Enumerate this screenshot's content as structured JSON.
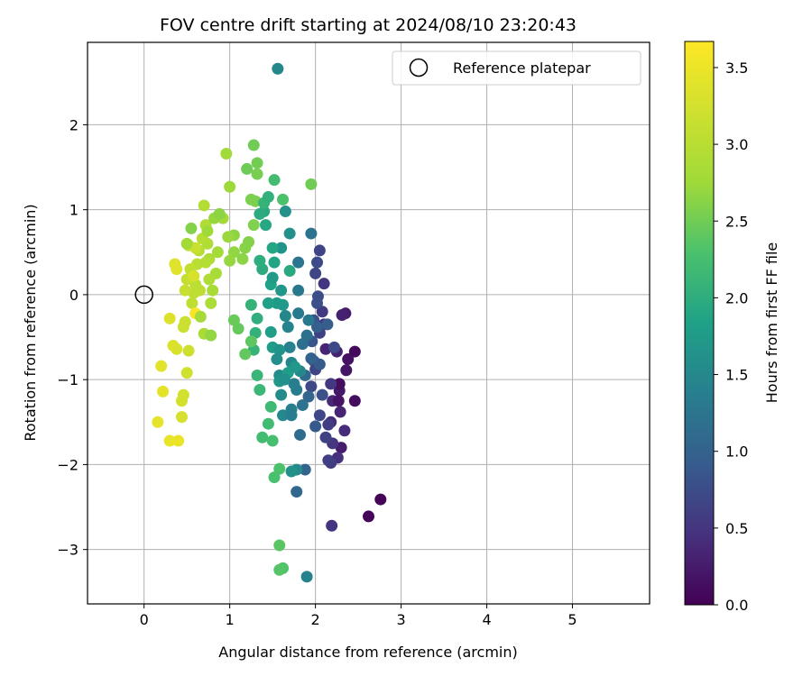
{
  "chart_data": {
    "type": "scatter",
    "title": "FOV centre drift starting at 2024/08/10 23:20:43",
    "xlabel": "Angular distance from reference (arcmin)",
    "ylabel": "Rotation from reference (arcmin)",
    "xlim": [
      -0.66,
      5.9
    ],
    "ylim": [
      -3.64,
      2.97
    ],
    "xticks": [
      0,
      1,
      2,
      3,
      4,
      5
    ],
    "yticks": [
      -3,
      -2,
      -1,
      0,
      1,
      2
    ],
    "xtick_labels": [
      "0",
      "1",
      "2",
      "3",
      "4",
      "5"
    ],
    "ytick_labels": [
      "−3",
      "−2",
      "−1",
      "0",
      "1",
      "2"
    ],
    "grid": true,
    "legend": {
      "position": "top-right",
      "label": "Reference platepar",
      "marker": "open-circle"
    },
    "reference_point": {
      "x": 0,
      "y": 0
    },
    "colorbar": {
      "label": "Hours from first FF file",
      "min": 0.0,
      "max": 3.67,
      "ticks": [
        0.0,
        0.5,
        1.0,
        1.5,
        2.0,
        2.5,
        3.0,
        3.5
      ],
      "tick_labels": [
        "0.0",
        "0.5",
        "1.0",
        "1.5",
        "2.0",
        "2.5",
        "3.0",
        "3.5"
      ],
      "colormap": "viridis"
    },
    "series": [
      {
        "points": [
          [
            2.76,
            -2.41,
            0.02
          ],
          [
            2.62,
            -2.61,
            0.05
          ],
          [
            2.46,
            -0.67,
            0.08
          ],
          [
            2.46,
            -1.25,
            0.1
          ],
          [
            2.38,
            -0.76,
            0.15
          ],
          [
            2.36,
            -0.89,
            0.2
          ],
          [
            2.35,
            -0.22,
            0.25
          ],
          [
            2.31,
            -0.24,
            0.3
          ],
          [
            2.28,
            -1.13,
            0.22
          ],
          [
            2.29,
            -1.38,
            0.35
          ],
          [
            2.34,
            -1.6,
            0.4
          ],
          [
            2.3,
            -1.8,
            0.28
          ],
          [
            2.26,
            -1.92,
            0.45
          ],
          [
            2.2,
            -1.75,
            0.5
          ],
          [
            2.18,
            -1.98,
            0.55
          ],
          [
            2.15,
            -1.95,
            0.6
          ],
          [
            2.19,
            -2.72,
            0.48
          ],
          [
            2.25,
            -0.67,
            0.32
          ],
          [
            2.18,
            -1.5,
            0.42
          ],
          [
            2.15,
            -1.53,
            0.58
          ],
          [
            2.2,
            -1.25,
            0.38
          ],
          [
            2.28,
            -1.05,
            0.12
          ],
          [
            2.27,
            -1.25,
            0.18
          ],
          [
            2.18,
            -1.05,
            0.52
          ],
          [
            2.12,
            -0.64,
            0.35
          ],
          [
            2.1,
            -0.35,
            0.45
          ],
          [
            2.08,
            -0.2,
            0.55
          ],
          [
            2.05,
            -0.45,
            0.62
          ],
          [
            2.1,
            0.13,
            0.48
          ],
          [
            2.05,
            0.52,
            0.65
          ],
          [
            2.02,
            0.38,
            0.72
          ],
          [
            2.0,
            0.25,
            0.68
          ],
          [
            2.03,
            -0.02,
            0.75
          ],
          [
            2.02,
            -0.1,
            0.78
          ],
          [
            1.98,
            -0.3,
            0.82
          ],
          [
            1.96,
            -0.55,
            0.85
          ],
          [
            1.98,
            -0.78,
            0.88
          ],
          [
            2.0,
            -0.88,
            0.66
          ],
          [
            1.95,
            -1.08,
            0.72
          ],
          [
            2.05,
            -0.82,
            0.92
          ],
          [
            2.02,
            -0.38,
            0.96
          ],
          [
            2.08,
            -1.18,
            0.8
          ],
          [
            2.05,
            -1.42,
            0.7
          ],
          [
            2.12,
            -1.68,
            0.62
          ],
          [
            2.0,
            -1.55,
            0.9
          ],
          [
            1.95,
            -0.75,
            1.0
          ],
          [
            1.92,
            -1.2,
            1.05
          ],
          [
            1.88,
            -0.95,
            1.1
          ],
          [
            1.85,
            -0.58,
            1.15
          ],
          [
            1.88,
            -2.06,
            1.02
          ],
          [
            1.78,
            -2.32,
            1.08
          ],
          [
            1.82,
            -1.65,
            1.12
          ],
          [
            1.9,
            -0.48,
            1.18
          ],
          [
            1.95,
            0.72,
            1.22
          ],
          [
            1.8,
            0.38,
            1.25
          ],
          [
            1.8,
            0.05,
            1.28
          ],
          [
            1.8,
            -0.22,
            1.3
          ],
          [
            1.78,
            -1.12,
            1.32
          ],
          [
            1.75,
            -1.05,
            1.35
          ],
          [
            1.72,
            -1.35,
            1.38
          ],
          [
            1.7,
            -0.62,
            1.4
          ],
          [
            1.68,
            -0.38,
            1.42
          ],
          [
            1.72,
            -0.8,
            1.45
          ],
          [
            1.65,
            -0.25,
            1.48
          ],
          [
            1.62,
            -1.42,
            1.5
          ],
          [
            1.6,
            -1.18,
            1.52
          ],
          [
            1.58,
            -0.95,
            1.55
          ],
          [
            1.55,
            -0.76,
            1.58
          ],
          [
            1.7,
            0.72,
            1.6
          ],
          [
            1.65,
            0.98,
            1.62
          ],
          [
            1.6,
            0.55,
            1.65
          ],
          [
            1.58,
            -1.02,
            1.68
          ],
          [
            1.6,
            0.05,
            1.7
          ],
          [
            1.62,
            -0.12,
            1.72
          ],
          [
            1.55,
            -0.1,
            1.75
          ],
          [
            1.5,
            -0.62,
            1.78
          ],
          [
            1.48,
            -0.44,
            1.8
          ],
          [
            1.45,
            -0.1,
            1.82
          ],
          [
            1.48,
            0.12,
            1.85
          ],
          [
            1.52,
            0.38,
            1.88
          ],
          [
            1.5,
            0.55,
            1.9
          ],
          [
            1.42,
            0.82,
            1.92
          ],
          [
            1.4,
            0.98,
            1.95
          ],
          [
            1.38,
            0.3,
            1.98
          ],
          [
            1.35,
            0.4,
            2.0
          ],
          [
            1.32,
            -0.28,
            2.02
          ],
          [
            1.3,
            -0.45,
            2.05
          ],
          [
            1.25,
            -0.12,
            2.08
          ],
          [
            1.28,
            -0.65,
            2.1
          ],
          [
            1.32,
            -0.95,
            2.12
          ],
          [
            1.35,
            -1.12,
            2.15
          ],
          [
            1.48,
            -1.32,
            2.18
          ],
          [
            1.45,
            -1.52,
            2.2
          ],
          [
            1.38,
            -1.68,
            2.22
          ],
          [
            1.5,
            -1.72,
            2.25
          ],
          [
            1.52,
            -2.15,
            2.28
          ],
          [
            1.58,
            -2.05,
            2.3
          ],
          [
            1.62,
            -3.22,
            2.32
          ],
          [
            1.58,
            -3.24,
            2.35
          ],
          [
            1.9,
            -3.32,
            1.42
          ],
          [
            1.58,
            -2.95,
            2.38
          ],
          [
            1.25,
            -0.55,
            2.4
          ],
          [
            1.18,
            -0.7,
            2.42
          ],
          [
            1.1,
            -0.4,
            2.44
          ],
          [
            1.05,
            -0.3,
            2.46
          ],
          [
            1.2,
            1.48,
            2.48
          ],
          [
            1.28,
            1.76,
            2.5
          ],
          [
            1.32,
            1.55,
            2.52
          ],
          [
            1.32,
            1.42,
            2.54
          ],
          [
            1.3,
            1.1,
            2.55
          ],
          [
            1.25,
            1.12,
            2.56
          ],
          [
            1.28,
            0.82,
            2.58
          ],
          [
            1.22,
            0.62,
            2.6
          ],
          [
            1.18,
            0.55,
            2.62
          ],
          [
            1.15,
            0.42,
            2.64
          ],
          [
            1.05,
            0.7,
            2.66
          ],
          [
            1.05,
            0.5,
            2.68
          ],
          [
            1.0,
            0.4,
            2.7
          ],
          [
            0.98,
            0.68,
            2.72
          ],
          [
            1.0,
            1.27,
            2.74
          ],
          [
            0.96,
            1.66,
            2.76
          ],
          [
            0.92,
            0.9,
            2.78
          ],
          [
            0.86,
            0.5,
            2.8
          ],
          [
            0.84,
            0.25,
            2.82
          ],
          [
            0.8,
            0.05,
            2.84
          ],
          [
            0.78,
            -0.1,
            2.86
          ],
          [
            0.76,
            0.42,
            2.88
          ],
          [
            0.74,
            0.6,
            2.9
          ],
          [
            0.72,
            0.82,
            2.92
          ],
          [
            0.7,
            1.05,
            2.94
          ],
          [
            0.68,
            0.66,
            2.96
          ],
          [
            0.64,
            0.52,
            2.98
          ],
          [
            0.62,
            0.36,
            3.0
          ],
          [
            0.6,
            0.12,
            3.02
          ],
          [
            0.58,
            0.02,
            3.04
          ],
          [
            0.56,
            -0.1,
            3.06
          ],
          [
            0.54,
            0.3,
            3.08
          ],
          [
            0.52,
            0.58,
            3.1
          ],
          [
            0.5,
            0.18,
            3.12
          ],
          [
            0.48,
            0.05,
            3.14
          ],
          [
            0.48,
            -0.32,
            3.16
          ],
          [
            0.46,
            -0.38,
            3.18
          ],
          [
            0.52,
            -0.66,
            3.2
          ],
          [
            0.5,
            -0.92,
            3.22
          ],
          [
            0.46,
            -1.18,
            3.24
          ],
          [
            0.44,
            -1.25,
            3.26
          ],
          [
            0.44,
            -1.44,
            3.28
          ],
          [
            0.38,
            -0.64,
            3.3
          ],
          [
            0.34,
            -0.6,
            3.32
          ],
          [
            0.3,
            -0.28,
            3.34
          ],
          [
            0.36,
            0.36,
            3.36
          ],
          [
            0.38,
            0.3,
            3.38
          ],
          [
            0.2,
            -0.84,
            3.4
          ],
          [
            0.22,
            -1.14,
            3.42
          ],
          [
            0.16,
            -1.5,
            3.44
          ],
          [
            0.3,
            -1.72,
            3.46
          ],
          [
            0.4,
            -1.72,
            3.48
          ],
          [
            0.6,
            -0.22,
            3.6
          ],
          [
            0.58,
            0.22,
            3.3
          ],
          [
            0.6,
            0.55,
            3.15
          ],
          [
            0.65,
            0.05,
            3.05
          ],
          [
            0.72,
            0.38,
            2.95
          ],
          [
            0.76,
            0.18,
            2.9
          ],
          [
            0.7,
            -0.46,
            2.85
          ],
          [
            0.66,
            -0.26,
            2.8
          ],
          [
            0.74,
            0.75,
            2.75
          ],
          [
            0.82,
            0.9,
            2.7
          ],
          [
            0.88,
            0.95,
            2.65
          ],
          [
            0.78,
            -0.48,
            2.68
          ],
          [
            0.55,
            0.78,
            2.6
          ],
          [
            0.5,
            0.6,
            2.78
          ],
          [
            1.62,
            1.12,
            2.3
          ],
          [
            1.52,
            1.35,
            2.22
          ],
          [
            1.7,
            0.28,
            1.95
          ],
          [
            1.82,
            -0.9,
            1.5
          ],
          [
            1.68,
            -0.92,
            1.78
          ],
          [
            1.76,
            -0.85,
            1.72
          ],
          [
            1.92,
            -0.3,
            1.3
          ],
          [
            2.22,
            -0.62,
            0.72
          ],
          [
            2.14,
            -0.35,
            0.95
          ],
          [
            1.95,
            1.3,
            2.5
          ],
          [
            1.56,
            2.66,
            1.48
          ],
          [
            1.4,
            1.08,
            2.1
          ],
          [
            1.45,
            1.15,
            2.05
          ],
          [
            1.35,
            0.95,
            1.98
          ],
          [
            1.5,
            0.2,
            1.75
          ],
          [
            1.58,
            -0.65,
            1.65
          ],
          [
            1.64,
            -1.0,
            1.6
          ],
          [
            1.72,
            -1.42,
            1.35
          ],
          [
            1.85,
            -1.3,
            1.2
          ],
          [
            1.78,
            -2.06,
            1.52
          ],
          [
            1.72,
            -2.08,
            1.62
          ]
        ]
      }
    ]
  }
}
